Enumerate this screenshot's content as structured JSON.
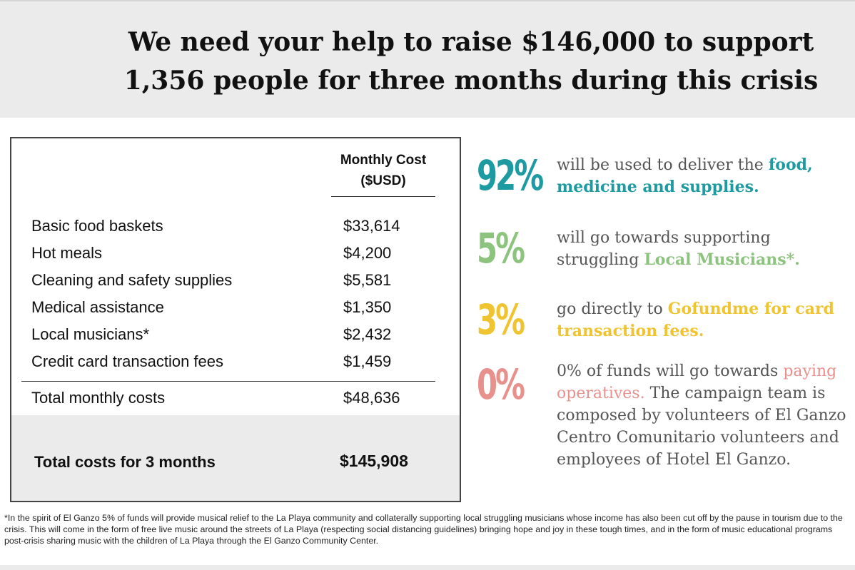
{
  "headline": {
    "line1": "We need your help to raise $146,000 to support",
    "line2": "1,356 people for three months during this crisis"
  },
  "table": {
    "column_header_line1": "Monthly Cost",
    "column_header_line2": "($USD)",
    "rows": [
      {
        "label": "Basic food baskets",
        "value": "$33,614"
      },
      {
        "label": "Hot meals",
        "value": "$4,200"
      },
      {
        "label": "Cleaning and safety supplies",
        "value": "$5,581"
      },
      {
        "label": "Medical assistance",
        "value": "$1,350"
      },
      {
        "label": "Local musicians*",
        "value": "$2,432"
      },
      {
        "label": "Credit card transaction fees",
        "value": "$1,459"
      }
    ],
    "monthly_total": {
      "label": "Total monthly costs",
      "value": "$48,636"
    },
    "grand_total": {
      "label": "Total costs for 3 months",
      "value": "$145,908"
    }
  },
  "stats": [
    {
      "percent": "92%",
      "text_plain": "will be used to deliver the",
      "text_highlight": "food, medicine and supplies.",
      "text_after": "",
      "color": "#1e9aa3"
    },
    {
      "percent": "5%",
      "text_plain": "will go towards supporting struggling",
      "text_highlight": "Local Musicians*.",
      "text_after": "",
      "color": "#8cc47d"
    },
    {
      "percent": "3%",
      "text_plain": "go directly to",
      "text_highlight": "Gofundme for card transaction fees.",
      "text_after": "",
      "color": "#f0c430"
    },
    {
      "percent": "0%",
      "text_plain": "0% of funds will go towards",
      "text_highlight": "paying operatives.",
      "text_after": "The campaign team is composed by volunteers of El Ganzo Centro Comunitario volunteers and employees of Hotel El Ganzo.",
      "color": "#e8908c"
    }
  ],
  "footnote": "*In the spirit of El Ganzo 5% of funds will provide musical relief to the La Playa community and collaterally supporting local struggling musicians whose income has also been cut off by the pause in tourism due to the crisis.  This will come in the form of free live music around the streets of La Playa (respecting social distancing guidelines) bringing hope and joy in these tough times, and in the form of music educational programs post-crisis sharing music with the children of La Playa through the El Ganzo Community Center."
}
